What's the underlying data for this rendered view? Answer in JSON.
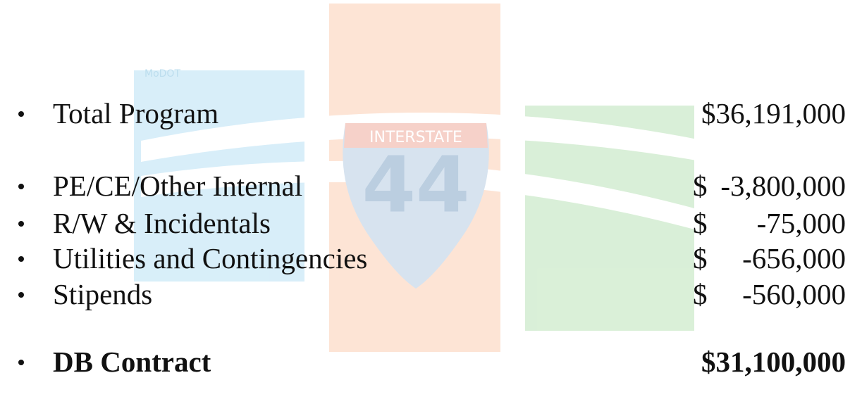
{
  "watermark": {
    "logo": "MoDOT",
    "shield_top": "INTERSTATE",
    "shield_number": "44"
  },
  "items": [
    {
      "label": "Total Program",
      "amount": "$36,191,000",
      "bold": false
    },
    {
      "label": "PE/CE/Other Internal",
      "currency": "$",
      "amount": "-3,800,000",
      "bold": false
    },
    {
      "label": "R/W & Incidentals",
      "currency": "$",
      "amount": "-75,000",
      "bold": false
    },
    {
      "label": "Utilities and Contingencies",
      "currency": "$",
      "amount": "-656,000",
      "bold": false
    },
    {
      "label": "Stipends",
      "currency": "$",
      "amount": "-560,000",
      "bold": false
    },
    {
      "label": "DB Contract",
      "amount": "$31,100,000",
      "bold": true
    }
  ]
}
